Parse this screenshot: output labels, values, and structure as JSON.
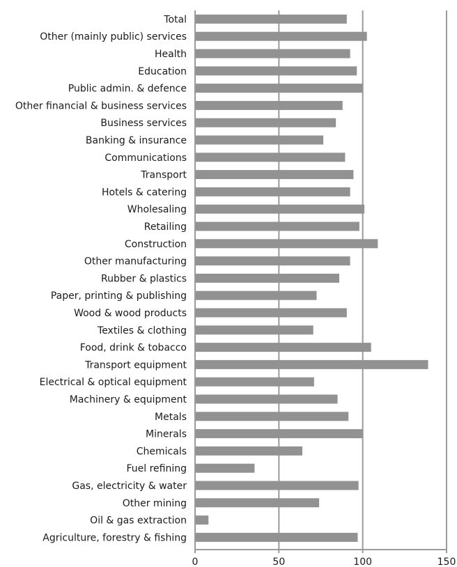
{
  "chart_data": {
    "type": "bar",
    "orientation": "horizontal",
    "title": "",
    "xlabel": "",
    "ylabel": "",
    "xlim": [
      0,
      150
    ],
    "xticks": [
      0,
      50,
      100,
      150
    ],
    "grid": true,
    "legend": "none",
    "bar_color": "#929292",
    "categories": [
      "Total",
      "Other (mainly public) services",
      "Health",
      "Education",
      "Public admin. & defence",
      "Other financial & business services",
      "Business services",
      "Banking & insurance",
      "Communications",
      "Transport",
      "Hotels & catering",
      "Wholesaling",
      "Retailing",
      "Construction",
      "Other manufacturing",
      "Rubber & plastics",
      "Paper, printing & publishing",
      "Wood & wood products",
      "Textiles & clothing",
      "Food, drink & tobacco",
      "Transport equipment",
      "Electrical & optical equipment",
      "Machinery & equipment",
      "Metals",
      "Minerals",
      "Chemicals",
      "Fuel refining",
      "Gas, electricity & water",
      "Other mining",
      "Oil & gas extraction",
      "Agriculture, forestry & fishing"
    ],
    "values": [
      90.5,
      102.5,
      92.5,
      96.5,
      100,
      88,
      84,
      76.5,
      89.5,
      94.5,
      92.5,
      101,
      98,
      109,
      92.5,
      86,
      72.5,
      90.5,
      70.5,
      105,
      139,
      71,
      85,
      91.5,
      100,
      64,
      35.5,
      97.5,
      74,
      8,
      97
    ]
  }
}
